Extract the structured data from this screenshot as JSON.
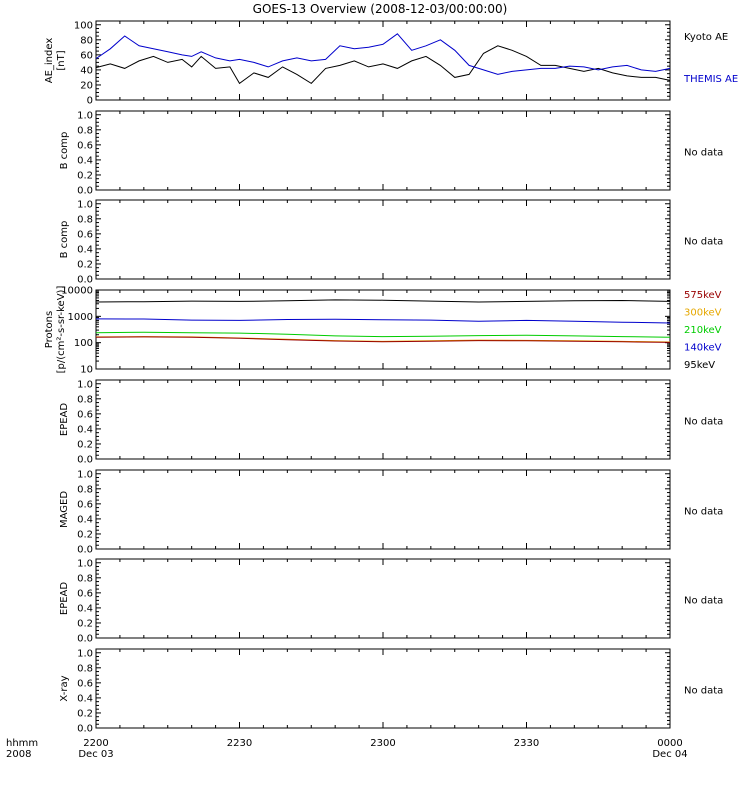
{
  "title": "GOES-13 Overview (2008-12-03/00:00:00)",
  "x_axis": {
    "label_left": [
      "hhmm",
      "2008"
    ],
    "ticks": [
      {
        "t": 0,
        "top": "2200",
        "bottom": "Dec 03"
      },
      {
        "t": 30,
        "top": "2230",
        "bottom": ""
      },
      {
        "t": 60,
        "top": "2300",
        "bottom": ""
      },
      {
        "t": 90,
        "top": "2330",
        "bottom": ""
      },
      {
        "t": 120,
        "top": "0000",
        "bottom": "Dec 04"
      }
    ],
    "range_minutes": [
      0,
      120
    ]
  },
  "panels": [
    {
      "id": "ae",
      "ylabel": [
        "AE_index",
        "[nT]"
      ],
      "yrange": [
        0,
        105
      ],
      "yticks": [
        "0",
        "20",
        "40",
        "60",
        "80",
        "100"
      ],
      "ytick_values": [
        0,
        20,
        40,
        60,
        80,
        100
      ],
      "legend": [
        {
          "text": "Kyoto AE",
          "color": "#000000"
        },
        {
          "text": "THEMIS AE",
          "color": "#0000cc"
        }
      ],
      "nodata": ""
    },
    {
      "id": "bcomp1",
      "ylabel": [
        "B comp"
      ],
      "yrange": [
        0,
        1.05
      ],
      "yticks": [
        "0.0",
        "0.2",
        "0.4",
        "0.6",
        "0.8",
        "1.0"
      ],
      "ytick_values": [
        0,
        0.2,
        0.4,
        0.6,
        0.8,
        1.0
      ],
      "legend": [],
      "nodata": "No data"
    },
    {
      "id": "bcomp2",
      "ylabel": [
        "B comp"
      ],
      "yrange": [
        0,
        1.05
      ],
      "yticks": [
        "0.0",
        "0.2",
        "0.4",
        "0.6",
        "0.8",
        "1.0"
      ],
      "ytick_values": [
        0,
        0.2,
        0.4,
        0.6,
        0.8,
        1.0
      ],
      "legend": [],
      "nodata": "No data"
    },
    {
      "id": "protons",
      "ylabel": [
        "Protons",
        "[p/(cm²-s-sr-keV)]"
      ],
      "log": true,
      "yrange": [
        10,
        10000
      ],
      "yticks": [
        "10",
        "100",
        "1000",
        "10000"
      ],
      "ytick_values": [
        10,
        100,
        1000,
        10000
      ],
      "legend": [
        {
          "text": "575keV",
          "color": "#990000"
        },
        {
          "text": "300keV",
          "color": "#e6a800"
        },
        {
          "text": "210keV",
          "color": "#00cc00"
        },
        {
          "text": "140keV",
          "color": "#0000cc"
        },
        {
          "text": "95keV",
          "color": "#000000"
        }
      ],
      "nodata": ""
    },
    {
      "id": "epead1",
      "ylabel": [
        "EPEAD"
      ],
      "yrange": [
        0,
        1.05
      ],
      "yticks": [
        "0.0",
        "0.2",
        "0.4",
        "0.6",
        "0.8",
        "1.0"
      ],
      "ytick_values": [
        0,
        0.2,
        0.4,
        0.6,
        0.8,
        1.0
      ],
      "legend": [],
      "nodata": "No data"
    },
    {
      "id": "maged",
      "ylabel": [
        "MAGED"
      ],
      "yrange": [
        0,
        1.05
      ],
      "yticks": [
        "0.0",
        "0.2",
        "0.4",
        "0.6",
        "0.8",
        "1.0"
      ],
      "ytick_values": [
        0,
        0.2,
        0.4,
        0.6,
        0.8,
        1.0
      ],
      "legend": [],
      "nodata": "No data"
    },
    {
      "id": "epead2",
      "ylabel": [
        "EPEAD"
      ],
      "yrange": [
        0,
        1.05
      ],
      "yticks": [
        "0.0",
        "0.2",
        "0.4",
        "0.6",
        "0.8",
        "1.0"
      ],
      "ytick_values": [
        0,
        0.2,
        0.4,
        0.6,
        0.8,
        1.0
      ],
      "legend": [],
      "nodata": "No data"
    },
    {
      "id": "xray",
      "ylabel": [
        "X-ray"
      ],
      "yrange": [
        0,
        1.05
      ],
      "yticks": [
        "0.0",
        "0.2",
        "0.4",
        "0.6",
        "0.8",
        "1.0"
      ],
      "ytick_values": [
        0,
        0.2,
        0.4,
        0.6,
        0.8,
        1.0
      ],
      "legend": [],
      "nodata": "No data"
    }
  ],
  "chart_data": [
    {
      "type": "line",
      "panel": "ae",
      "title": "GOES-13 Overview (2008-12-03/00:00:00)",
      "xlabel": "hhmm",
      "ylabel": "AE_index [nT]",
      "ylim": [
        0,
        105
      ],
      "series": [
        {
          "name": "Kyoto AE",
          "color": "#000000",
          "x": [
            0,
            3,
            6,
            9,
            12,
            15,
            18,
            20,
            22,
            25,
            28,
            30,
            33,
            36,
            39,
            42,
            45,
            48,
            51,
            54,
            57,
            60,
            63,
            66,
            69,
            72,
            75,
            78,
            81,
            84,
            87,
            90,
            93,
            96,
            99,
            102,
            105,
            108,
            111,
            114,
            117,
            120
          ],
          "y": [
            43,
            48,
            42,
            52,
            58,
            50,
            54,
            44,
            58,
            42,
            44,
            22,
            36,
            30,
            44,
            34,
            22,
            42,
            46,
            52,
            44,
            48,
            42,
            52,
            58,
            46,
            30,
            34,
            62,
            72,
            66,
            58,
            46,
            46,
            42,
            38,
            42,
            36,
            32,
            30,
            30,
            26
          ]
        },
        {
          "name": "THEMIS AE",
          "color": "#0000cc",
          "x": [
            0,
            3,
            6,
            9,
            12,
            15,
            18,
            20,
            22,
            25,
            28,
            30,
            33,
            36,
            39,
            42,
            45,
            48,
            51,
            54,
            57,
            60,
            63,
            66,
            69,
            72,
            75,
            78,
            81,
            84,
            87,
            90,
            93,
            96,
            99,
            102,
            105,
            108,
            111,
            114,
            117,
            120
          ],
          "y": [
            55,
            68,
            85,
            72,
            68,
            64,
            60,
            58,
            64,
            56,
            52,
            54,
            50,
            44,
            52,
            56,
            52,
            54,
            72,
            68,
            70,
            74,
            88,
            66,
            72,
            80,
            66,
            46,
            40,
            34,
            38,
            40,
            42,
            42,
            45,
            44,
            40,
            44,
            46,
            40,
            38,
            42
          ]
        }
      ]
    },
    {
      "type": "line",
      "panel": "protons",
      "ylabel": "Protons [p/(cm²-s-sr-keV)]",
      "ylim": [
        10,
        10000
      ],
      "scale": "log",
      "series": [
        {
          "name": "95keV",
          "color": "#000000",
          "x": [
            0,
            10,
            20,
            30,
            40,
            50,
            60,
            70,
            80,
            90,
            100,
            110,
            120
          ],
          "y": [
            3500,
            3600,
            3800,
            3700,
            3900,
            4200,
            4100,
            3800,
            3500,
            3700,
            3900,
            4000,
            3700
          ]
        },
        {
          "name": "140keV",
          "color": "#0000cc",
          "x": [
            0,
            10,
            20,
            30,
            40,
            50,
            60,
            70,
            80,
            90,
            100,
            110,
            120
          ],
          "y": [
            800,
            790,
            720,
            700,
            760,
            780,
            740,
            720,
            650,
            700,
            650,
            600,
            560
          ]
        },
        {
          "name": "210keV",
          "color": "#00cc00",
          "x": [
            0,
            10,
            20,
            30,
            40,
            50,
            60,
            70,
            80,
            90,
            100,
            110,
            120
          ],
          "y": [
            240,
            250,
            240,
            230,
            210,
            180,
            170,
            175,
            185,
            190,
            180,
            170,
            160
          ]
        },
        {
          "name": "300keV",
          "color": "#e6a800",
          "x": [
            0,
            10,
            20,
            30,
            40,
            50,
            60,
            70,
            80,
            90,
            100,
            110,
            120
          ],
          "y": [
            165,
            170,
            165,
            150,
            135,
            120,
            112,
            118,
            125,
            122,
            118,
            112,
            106
          ]
        },
        {
          "name": "575keV",
          "color": "#990000",
          "x": [
            0,
            10,
            20,
            30,
            40,
            50,
            60,
            70,
            80,
            90,
            100,
            110,
            120
          ],
          "y": [
            160,
            165,
            160,
            146,
            130,
            116,
            108,
            114,
            120,
            118,
            114,
            108,
            102
          ]
        }
      ]
    }
  ]
}
